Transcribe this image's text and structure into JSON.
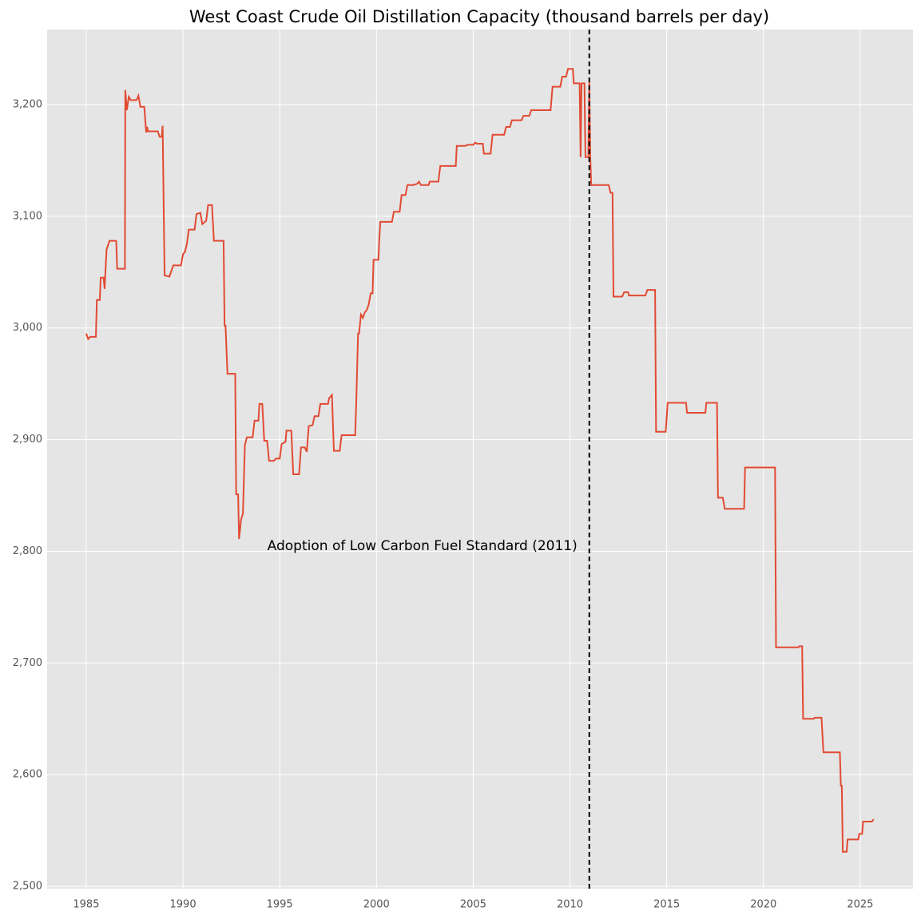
{
  "chart_data": {
    "type": "line",
    "title": "West Coast Crude Oil Distillation Capacity (thousand barrels per day)",
    "annotation": "Adoption of Low Carbon Fuel Standard (2011)",
    "vline": 2011,
    "xlim": [
      1982.98,
      2027.73
    ],
    "ylim": [
      2497.9,
      3267.2
    ],
    "xticks": [
      1985,
      1990,
      1995,
      2000,
      2005,
      2010,
      2015,
      2020,
      2025
    ],
    "yticks": [
      {
        "value": 2500,
        "label": "2,500"
      },
      {
        "value": 2600,
        "label": "2,600"
      },
      {
        "value": 2700,
        "label": "2,700"
      },
      {
        "value": 2800,
        "label": "2,800"
      },
      {
        "value": 2900,
        "label": "2,900"
      },
      {
        "value": 3000,
        "label": "3,000"
      },
      {
        "value": 3100,
        "label": "3,100"
      },
      {
        "value": 3200,
        "label": "3,200"
      }
    ],
    "grid": true,
    "x": [
      1985.0,
      1985.1,
      1985.2,
      1985.5,
      1985.55,
      1985.7,
      1985.75,
      1985.9,
      1985.95,
      1986.05,
      1986.2,
      1986.55,
      1986.6,
      1987.0,
      1987.02,
      1987.1,
      1987.2,
      1987.3,
      1987.6,
      1987.7,
      1987.8,
      1988.0,
      1988.1,
      1988.15,
      1988.2,
      1988.7,
      1988.8,
      1988.9,
      1988.95,
      1989.05,
      1989.3,
      1989.5,
      1989.9,
      1990.0,
      1990.1,
      1990.2,
      1990.3,
      1990.6,
      1990.7,
      1990.9,
      1991.0,
      1991.2,
      1991.3,
      1991.5,
      1991.6,
      1992.1,
      1992.15,
      1992.2,
      1992.3,
      1992.7,
      1992.75,
      1992.85,
      1992.9,
      1993.0,
      1993.1,
      1993.2,
      1993.3,
      1993.6,
      1993.7,
      1993.9,
      1993.95,
      1994.1,
      1994.2,
      1994.35,
      1994.45,
      1994.7,
      1994.8,
      1995.0,
      1995.1,
      1995.3,
      1995.35,
      1995.6,
      1995.7,
      1996.0,
      1996.1,
      1996.3,
      1996.4,
      1996.5,
      1996.7,
      1996.8,
      1997.0,
      1997.1,
      1997.5,
      1997.55,
      1997.7,
      1997.8,
      1998.1,
      1998.2,
      1998.9,
      1998.95,
      1999.05,
      1999.1,
      1999.2,
      1999.3,
      1999.4,
      1999.5,
      1999.6,
      1999.7,
      1999.8,
      1999.85,
      2000.1,
      2000.15,
      2000.2,
      2000.8,
      2000.9,
      2001.2,
      2001.3,
      2001.5,
      2001.6,
      2001.9,
      2002.1,
      2002.2,
      2002.3,
      2002.7,
      2002.75,
      2003.2,
      2003.3,
      2004.1,
      2004.15,
      2004.6,
      2004.7,
      2005.0,
      2005.1,
      2005.2,
      2005.5,
      2005.55,
      2005.9,
      2006.0,
      2006.6,
      2006.7,
      2006.9,
      2007.0,
      2007.5,
      2007.6,
      2007.9,
      2008.0,
      2009.0,
      2009.1,
      2009.5,
      2009.6,
      2009.8,
      2009.9,
      2010.15,
      2010.2,
      2010.5,
      2010.55,
      2010.6,
      2010.75,
      2010.8,
      2010.95,
      2011.0,
      2011.05,
      2011.1,
      2012.0,
      2012.1,
      2012.2,
      2012.25,
      2012.7,
      2012.8,
      2013.0,
      2013.05,
      2013.9,
      2014.0,
      2014.4,
      2014.45,
      2014.95,
      2015.05,
      2016.0,
      2016.05,
      2017.0,
      2017.05,
      2017.6,
      2017.65,
      2017.9,
      2018.0,
      2019.0,
      2019.05,
      2020.6,
      2020.65,
      2021.8,
      2021.85,
      2022.0,
      2022.05,
      2022.6,
      2022.65,
      2023.0,
      2023.1,
      2023.95,
      2024.0,
      2024.05,
      2024.1,
      2024.3,
      2024.35,
      2024.9,
      2024.95,
      2025.1,
      2025.15,
      2025.6,
      2025.7
    ],
    "series": [
      {
        "color": "#e24a33",
        "values": [
          2995,
          2990,
          2992,
          2992,
          3025,
          3025,
          3045,
          3045,
          3035,
          3070,
          3078,
          3078,
          3053,
          3053,
          3213,
          3195,
          3207,
          3204,
          3204,
          3208,
          3198,
          3198,
          3175,
          3180,
          3176,
          3176,
          3171,
          3171,
          3181,
          3047,
          3046,
          3056,
          3056,
          3066,
          3068,
          3075,
          3088,
          3088,
          3102,
          3103,
          3093,
          3096,
          3110,
          3110,
          3078,
          3078,
          3002,
          3002,
          2959,
          2959,
          2851,
          2851,
          2811,
          2828,
          2834,
          2895,
          2902,
          2902,
          2917,
          2917,
          2932,
          2932,
          2899,
          2899,
          2881,
          2881,
          2883,
          2883,
          2896,
          2898,
          2908,
          2908,
          2869,
          2869,
          2893,
          2893,
          2889,
          2912,
          2913,
          2921,
          2921,
          2932,
          2932,
          2937,
          2940,
          2890,
          2890,
          2904,
          2904,
          2930,
          2995,
          2995,
          3012,
          3009,
          3014,
          3016,
          3021,
          3031,
          3031,
          3061,
          3061,
          3080,
          3095,
          3095,
          3104,
          3104,
          3119,
          3119,
          3128,
          3128,
          3129,
          3131,
          3128,
          3128,
          3131,
          3131,
          3145,
          3145,
          3163,
          3163,
          3164,
          3164,
          3166,
          3165,
          3165,
          3156,
          3156,
          3173,
          3173,
          3180,
          3180,
          3186,
          3186,
          3190,
          3190,
          3195,
          3195,
          3216,
          3216,
          3225,
          3225,
          3232,
          3232,
          3219,
          3219,
          3153,
          3219,
          3219,
          3153,
          3153,
          3220,
          3153,
          3128,
          3128,
          3121,
          3121,
          3028,
          3028,
          3032,
          3032,
          3029,
          3029,
          3034,
          3034,
          2907,
          2907,
          2933,
          2933,
          2924,
          2924,
          2933,
          2933,
          2848,
          2848,
          2838,
          2838,
          2875,
          2875,
          2714,
          2714,
          2715,
          2715,
          2650,
          2650,
          2651,
          2651,
          2620,
          2620,
          2590,
          2590,
          2531,
          2531,
          2542,
          2542,
          2547,
          2547,
          2558,
          2558,
          2560
        ]
      }
    ]
  }
}
